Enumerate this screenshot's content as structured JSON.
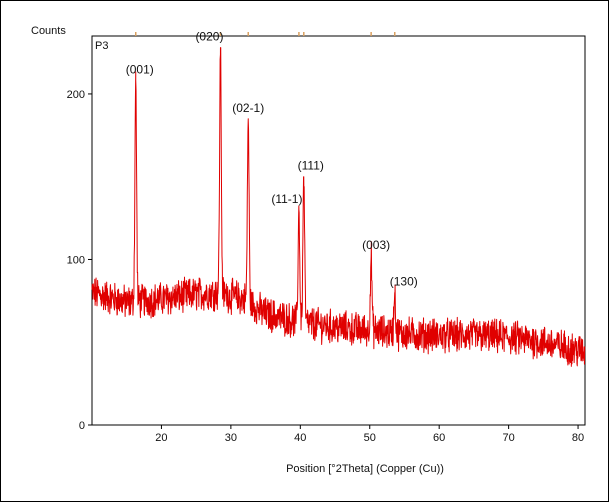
{
  "chart_data": {
    "type": "line",
    "ylabel": "Counts",
    "xlabel": "Position [°2Theta] (Copper (Cu))",
    "sample_label": "P3",
    "xlim": [
      10,
      81
    ],
    "ylim": [
      0,
      235
    ],
    "x_ticks": [
      "20",
      "30",
      "40",
      "50",
      "60",
      "70",
      "80"
    ],
    "y_ticks": [
      "0",
      "100",
      "200"
    ],
    "line_color": "#e00000",
    "marker_color": "#d9a060",
    "background_levels": [
      [
        10,
        80
      ],
      [
        15,
        74
      ],
      [
        20,
        76
      ],
      [
        25,
        79
      ],
      [
        28,
        80
      ],
      [
        32,
        76
      ],
      [
        35,
        67
      ],
      [
        40,
        62
      ],
      [
        45,
        59
      ],
      [
        50,
        57
      ],
      [
        55,
        55
      ],
      [
        60,
        54
      ],
      [
        65,
        54
      ],
      [
        70,
        53
      ],
      [
        75,
        50
      ],
      [
        81,
        44
      ]
    ],
    "noise_amplitude": 9,
    "peaks": [
      {
        "x": 16.3,
        "y": 208,
        "label": "(001)"
      },
      {
        "x": 28.5,
        "y": 228,
        "label": "(020)"
      },
      {
        "x": 32.5,
        "y": 185,
        "label": "(02-1)"
      },
      {
        "x": 39.8,
        "y": 130,
        "label": "(11-1)"
      },
      {
        "x": 40.5,
        "y": 150,
        "label": "(111)"
      },
      {
        "x": 50.2,
        "y": 102,
        "label": "(003)"
      },
      {
        "x": 53.6,
        "y": 80,
        "label": "(130)"
      }
    ],
    "reference_markers_x": [
      16.3,
      28.5,
      32.5,
      39.8,
      40.5,
      50.2,
      53.6
    ]
  }
}
